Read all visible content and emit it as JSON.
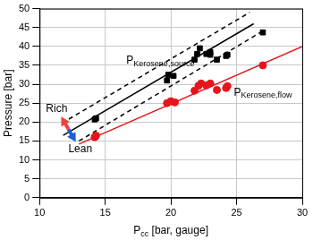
{
  "chart_data": {
    "type": "scatter",
    "x_label": {
      "text": "P",
      "subscript": "cc",
      "suffix": " [bar, gauge]"
    },
    "y_label": "Pressure [bar]",
    "xlim": [
      10,
      30
    ],
    "xticks": [
      10,
      15,
      20,
      25,
      30
    ],
    "ylim": [
      0,
      50
    ],
    "yticks": [
      0,
      5,
      10,
      15,
      20,
      25,
      30,
      35,
      40,
      45,
      50
    ],
    "grid": true,
    "series": [
      {
        "type": "scatter",
        "color": "#000000",
        "marker": "square",
        "x": [
          14.2,
          14.3,
          19.7,
          19.8,
          20.2,
          21.8,
          22.0,
          22.2,
          22.7,
          23.0,
          23.0,
          23.5,
          24.2,
          24.3,
          27.0
        ],
        "values": [
          20.7,
          21.0,
          31.0,
          32.5,
          32.2,
          36.5,
          38.0,
          39.5,
          38.0,
          38.5,
          37.8,
          36.5,
          37.5,
          37.8,
          43.7
        ]
      },
      {
        "type": "scatter",
        "color": "#e8141c",
        "marker": "circle",
        "x": [
          14.2,
          14.3,
          19.7,
          20.0,
          20.3,
          21.8,
          22.1,
          22.3,
          22.7,
          23.0,
          23.5,
          24.2,
          24.3,
          27.0
        ],
        "values": [
          16.0,
          16.4,
          25.0,
          25.5,
          25.2,
          28.3,
          29.6,
          30.2,
          29.7,
          30.2,
          28.5,
          29.0,
          29.5,
          35.0
        ]
      },
      {
        "type": "line",
        "color": "#000000",
        "line_style": "solid",
        "x": [
          11.8,
          26.3
        ],
        "values": [
          16.5,
          46.0
        ]
      },
      {
        "type": "line",
        "color": "#000000",
        "line_style": "dashed",
        "x": [
          11.7,
          26.0
        ],
        "values": [
          19.7,
          49.0
        ]
      },
      {
        "type": "line",
        "color": "#000000",
        "line_style": "dashed",
        "x": [
          13.0,
          27.2
        ],
        "values": [
          15.0,
          44.5
        ]
      },
      {
        "type": "line",
        "color": "#e8141c",
        "line_style": "solid",
        "x": [
          13.0,
          30.0
        ],
        "values": [
          14.2,
          40.0
        ]
      }
    ],
    "annotations": [
      {
        "text": "P",
        "subscript": "Kerosene,source",
        "x": 19.2,
        "y": 36.3
      },
      {
        "text": "P",
        "subscript": "Kerosene,flow",
        "x": 27.0,
        "y": 27.8
      },
      {
        "text": "Rich",
        "x": 11.3,
        "y": 23.5,
        "color": "#e8453c"
      },
      {
        "text": "Lean",
        "x": 13.1,
        "y": 12.7,
        "color": "#1f5fd0"
      }
    ]
  }
}
